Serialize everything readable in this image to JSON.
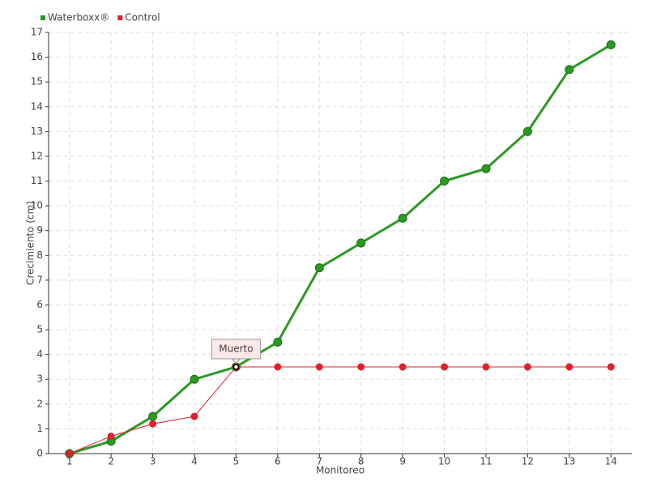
{
  "chart_data": {
    "type": "line",
    "x_label": "Monitoreo",
    "y_label": "Crecimiento (cm)",
    "x": [
      1,
      2,
      3,
      4,
      5,
      6,
      7,
      8,
      9,
      10,
      11,
      12,
      13,
      14
    ],
    "series": [
      {
        "name": "Waterboxx®",
        "color": "#2a9a22",
        "values": [
          0,
          0.5,
          1.5,
          3,
          3.5,
          4.5,
          7.5,
          8.5,
          9.5,
          11,
          11.5,
          13,
          15.5,
          16.5
        ]
      },
      {
        "name": "Control",
        "color": "#e0202e",
        "values": [
          0,
          0.7,
          1.2,
          1.5,
          3.5,
          3.5,
          3.5,
          3.5,
          3.5,
          3.5,
          3.5,
          3.5,
          3.5,
          3.5
        ]
      }
    ],
    "xlim": [
      0.5,
      14.5
    ],
    "xticks": [
      1,
      2,
      3,
      4,
      5,
      6,
      7,
      8,
      9,
      10,
      11,
      12,
      13,
      14
    ],
    "ylim": [
      0,
      17
    ],
    "yticks": [
      0,
      1,
      2,
      3,
      4,
      5,
      6,
      7,
      8,
      9,
      10,
      11,
      12,
      13,
      14,
      15,
      16,
      17
    ],
    "grid": true,
    "legend": "top-left",
    "annotations": [
      {
        "text": "Muerto",
        "x": 5,
        "y": 3.5
      }
    ]
  }
}
